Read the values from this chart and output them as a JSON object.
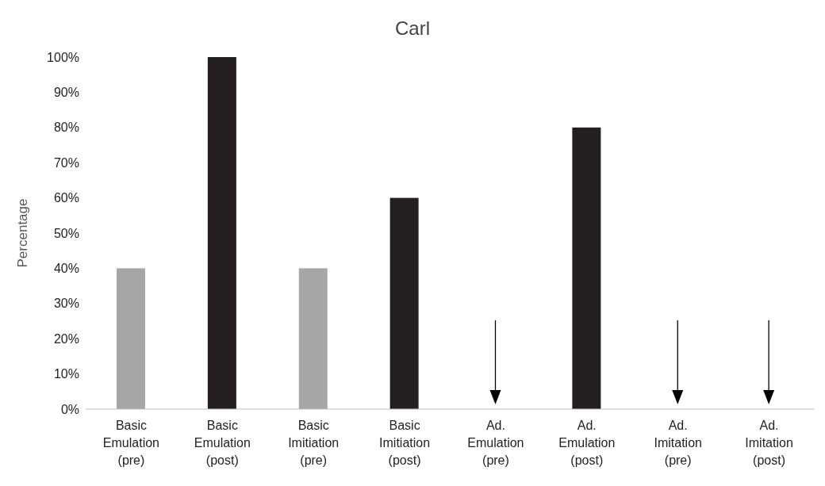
{
  "chart_data": {
    "type": "bar",
    "title": "Carl",
    "ylabel": "Percentage",
    "categories": [
      "Basic Emulation (pre)",
      "Basic Emulation (post)",
      "Basic Imitiation (pre)",
      "Basic Imitiation (post)",
      "Ad. Emulation (pre)",
      "Ad. Emulation (post)",
      "Ad. Imitation (pre)",
      "Ad. Imitation (post)"
    ],
    "values": [
      40,
      100,
      40,
      60,
      0,
      80,
      0,
      0
    ],
    "colors": [
      "#a6a6a6",
      "#231f20",
      "#a6a6a6",
      "#231f20",
      "#a6a6a6",
      "#231f20",
      "#a6a6a6",
      "#231f20"
    ],
    "ylim": [
      0,
      100
    ],
    "yticks": [
      {
        "value": 0,
        "label": "0%"
      },
      {
        "value": 10,
        "label": "10%"
      },
      {
        "value": 20,
        "label": "20%"
      },
      {
        "value": 30,
        "label": "30%"
      },
      {
        "value": 40,
        "label": "40%"
      },
      {
        "value": 50,
        "label": "50%"
      },
      {
        "value": 60,
        "label": "60%"
      },
      {
        "value": 70,
        "label": "70%"
      },
      {
        "value": 80,
        "label": "80%"
      },
      {
        "value": 90,
        "label": "90%"
      },
      {
        "value": 100,
        "label": "100%"
      }
    ],
    "grid": false,
    "legend": false
  }
}
